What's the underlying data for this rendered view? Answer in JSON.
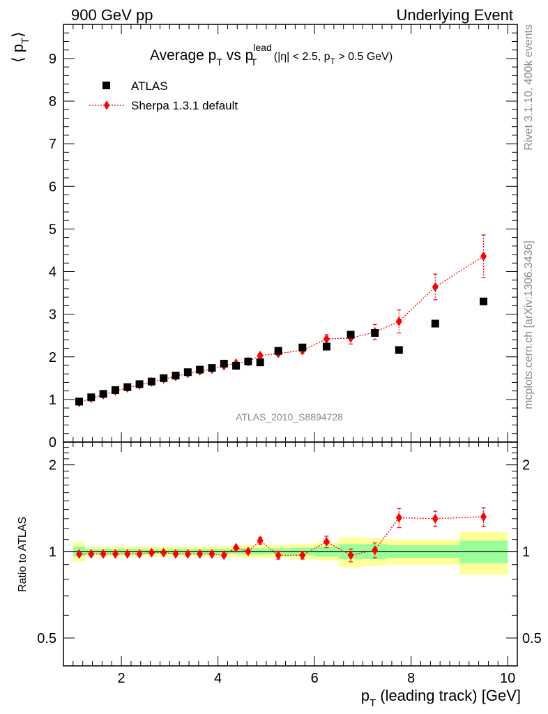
{
  "header": {
    "left": "900 GeV pp",
    "right": "Underlying Event"
  },
  "side": {
    "rivet": "Rivet 3.1.10,  400k events",
    "mcplots": "mcplots.cern.ch [arXiv:1306.3436]"
  },
  "watermark": "ATLAS_2010_S8894728",
  "chart_data": {
    "type": "scatter",
    "title": "Average p_T vs p_T^lead (|η| < 2.5, p_T > 0.5 GeV)",
    "title_parts": {
      "main": "Average p",
      "sub1": "T",
      "vs": " vs p",
      "sup": "lead",
      "sub2": "T",
      "cond_a": " (|η| < 2.5, p",
      "cond_sub": "T",
      "cond_b": " > 0.5 GeV)"
    },
    "ylabel_main": "⟨ p",
    "ylabel_sub": "T",
    "ylabel_close": "⟩",
    "xlabel_main": "p",
    "xlabel_sub": "T",
    "xlabel_rest": " (leading track) [GeV]",
    "ratio_ylabel": "Ratio to ATLAS",
    "xlim": [
      0.8,
      10.2
    ],
    "ylim": [
      0,
      9.8
    ],
    "ratio_ylim": [
      0.4,
      2.4
    ],
    "ratio_log": true,
    "x_ticks": [
      2,
      4,
      6,
      8,
      10
    ],
    "y_ticks": [
      0,
      1,
      2,
      3,
      4,
      5,
      6,
      7,
      8,
      9
    ],
    "ratio_ticks": [
      0.5,
      1,
      2
    ],
    "legend": {
      "position": "top-left",
      "atlas": "ATLAS",
      "sherpa": "Sherpa 1.3.1 default"
    },
    "colors": {
      "data": "#000000",
      "mc": "#ff0000",
      "band_inner": "#99ff99",
      "band_outer": "#ffff99"
    },
    "series": [
      {
        "name": "ATLAS",
        "x": [
          1.125,
          1.375,
          1.625,
          1.875,
          2.125,
          2.375,
          2.625,
          2.875,
          3.125,
          3.375,
          3.625,
          3.875,
          4.125,
          4.375,
          4.625,
          4.875,
          5.25,
          5.75,
          6.25,
          6.75,
          7.25,
          7.75,
          8.5,
          9.5
        ],
        "y": [
          0.95,
          1.05,
          1.13,
          1.22,
          1.29,
          1.36,
          1.42,
          1.5,
          1.56,
          1.64,
          1.7,
          1.74,
          1.84,
          1.79,
          1.89,
          1.87,
          2.14,
          2.22,
          2.24,
          2.52,
          2.56,
          2.16,
          2.78,
          3.3
        ]
      },
      {
        "name": "Sherpa 1.3.1 default",
        "x": [
          1.125,
          1.375,
          1.625,
          1.875,
          2.125,
          2.375,
          2.625,
          2.875,
          3.125,
          3.375,
          3.625,
          3.875,
          4.125,
          4.375,
          4.625,
          4.875,
          5.25,
          5.75,
          6.25,
          6.75,
          7.25,
          7.75,
          8.5,
          9.5
        ],
        "y": [
          0.93,
          1.03,
          1.11,
          1.2,
          1.27,
          1.34,
          1.41,
          1.48,
          1.54,
          1.61,
          1.67,
          1.71,
          1.79,
          1.85,
          1.89,
          2.03,
          2.08,
          2.15,
          2.42,
          2.44,
          2.58,
          2.83,
          3.64,
          4.36
        ],
        "yerr": [
          0.02,
          0.02,
          0.02,
          0.02,
          0.02,
          0.02,
          0.02,
          0.02,
          0.02,
          0.02,
          0.02,
          0.02,
          0.03,
          0.03,
          0.04,
          0.05,
          0.05,
          0.07,
          0.1,
          0.14,
          0.18,
          0.27,
          0.3,
          0.5
        ]
      }
    ],
    "ratio": {
      "x": [
        1.125,
        1.375,
        1.625,
        1.875,
        2.125,
        2.375,
        2.625,
        2.875,
        3.125,
        3.375,
        3.625,
        3.875,
        4.125,
        4.375,
        4.625,
        4.875,
        5.25,
        5.75,
        6.25,
        6.75,
        7.25,
        7.75,
        8.5,
        9.5
      ],
      "y": [
        0.98,
        0.98,
        0.98,
        0.98,
        0.98,
        0.98,
        0.99,
        0.99,
        0.98,
        0.98,
        0.98,
        0.98,
        0.97,
        1.03,
        1.0,
        1.09,
        0.97,
        0.97,
        1.08,
        0.97,
        1.01,
        1.31,
        1.3,
        1.32
      ],
      "yerr": [
        0.02,
        0.02,
        0.02,
        0.02,
        0.02,
        0.02,
        0.02,
        0.02,
        0.02,
        0.02,
        0.02,
        0.02,
        0.02,
        0.02,
        0.02,
        0.03,
        0.03,
        0.03,
        0.05,
        0.05,
        0.06,
        0.1,
        0.08,
        0.1
      ]
    },
    "bands": [
      {
        "lo": 1.0,
        "hi": 1.25,
        "inner": [
          0.96,
          1.04
        ],
        "outer": [
          0.92,
          1.08
        ]
      },
      {
        "lo": 1.25,
        "hi": 2.0,
        "inner": [
          0.98,
          1.02
        ],
        "outer": [
          0.96,
          1.04
        ]
      },
      {
        "lo": 2.0,
        "hi": 3.0,
        "inner": [
          0.98,
          1.02
        ],
        "outer": [
          0.96,
          1.04
        ]
      },
      {
        "lo": 3.0,
        "hi": 4.0,
        "inner": [
          0.98,
          1.02
        ],
        "outer": [
          0.96,
          1.04
        ]
      },
      {
        "lo": 4.0,
        "hi": 4.5,
        "inner": [
          0.98,
          1.02
        ],
        "outer": [
          0.955,
          1.045
        ]
      },
      {
        "lo": 4.5,
        "hi": 5.0,
        "inner": [
          0.975,
          1.025
        ],
        "outer": [
          0.95,
          1.05
        ]
      },
      {
        "lo": 5.0,
        "hi": 5.5,
        "inner": [
          0.975,
          1.025
        ],
        "outer": [
          0.95,
          1.05
        ]
      },
      {
        "lo": 5.5,
        "hi": 6.0,
        "inner": [
          0.97,
          1.03
        ],
        "outer": [
          0.94,
          1.06
        ]
      },
      {
        "lo": 6.0,
        "hi": 6.5,
        "inner": [
          0.96,
          1.04
        ],
        "outer": [
          0.93,
          1.07
        ]
      },
      {
        "lo": 6.5,
        "hi": 7.0,
        "inner": [
          0.94,
          1.06
        ],
        "outer": [
          0.88,
          1.12
        ]
      },
      {
        "lo": 7.0,
        "hi": 7.5,
        "inner": [
          0.94,
          1.06
        ],
        "outer": [
          0.89,
          1.11
        ]
      },
      {
        "lo": 7.5,
        "hi": 9.0,
        "inner": [
          0.95,
          1.05
        ],
        "outer": [
          0.9,
          1.1
        ]
      },
      {
        "lo": 9.0,
        "hi": 10.0,
        "inner": [
          0.91,
          1.09
        ],
        "outer": [
          0.83,
          1.17
        ]
      }
    ]
  }
}
